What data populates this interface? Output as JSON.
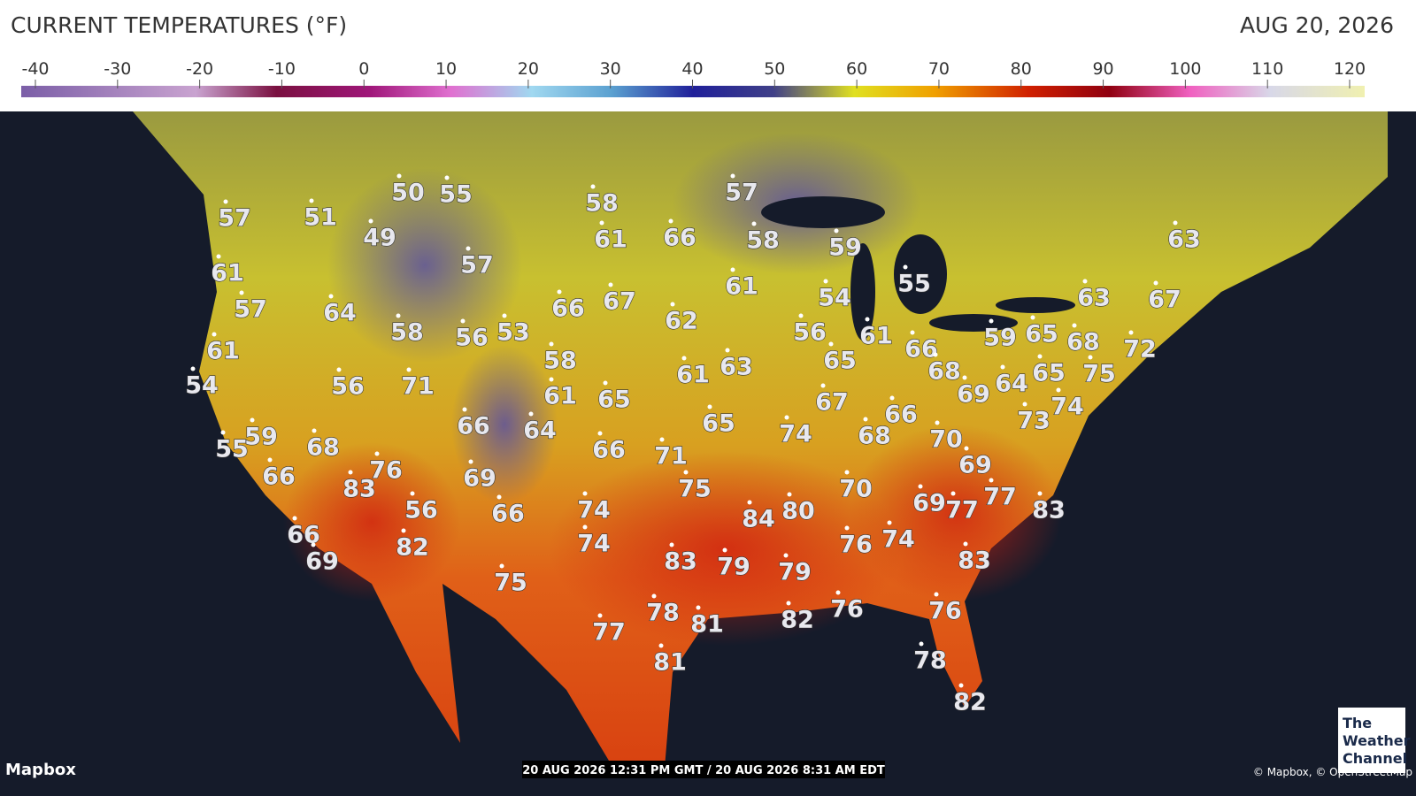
{
  "header": {
    "title": "CURRENT TEMPERATURES (°F)",
    "date": "AUG 20, 2026"
  },
  "scale": {
    "ticks": [
      -40,
      -30,
      -20,
      -10,
      0,
      10,
      20,
      30,
      40,
      50,
      60,
      70,
      80,
      90,
      100,
      110,
      120
    ]
  },
  "map": {
    "readings": [
      57,
      51,
      50,
      55,
      49,
      58,
      57,
      61,
      66,
      58,
      59,
      63,
      61,
      57,
      57,
      64,
      66,
      67,
      61,
      54,
      55,
      63,
      67,
      62,
      58,
      56,
      53,
      56,
      61,
      59,
      65,
      68,
      72,
      61,
      66,
      58,
      65,
      68,
      54,
      56,
      71,
      61,
      63,
      65,
      75,
      61,
      65,
      64,
      69,
      67,
      74,
      66,
      73,
      66,
      64,
      65,
      74,
      68,
      70,
      55,
      59,
      68,
      66,
      71,
      69,
      76,
      66,
      69,
      75,
      70,
      83,
      69,
      77,
      77,
      83,
      56,
      66,
      74,
      84,
      80,
      66,
      74,
      82,
      76,
      74,
      83,
      69,
      83,
      79,
      79,
      75,
      76,
      76,
      78,
      81,
      82,
      77,
      81,
      78,
      82
    ]
  },
  "footer": {
    "attribution_left": "Mapbox",
    "timestamp": "20 AUG 2026 12:31 PM GMT / 20 AUG 2026 8:31 AM EDT",
    "attribution_right": "© Mapbox, © OpenStreetMap",
    "logo": [
      "The",
      "Weather",
      "Channel"
    ]
  }
}
